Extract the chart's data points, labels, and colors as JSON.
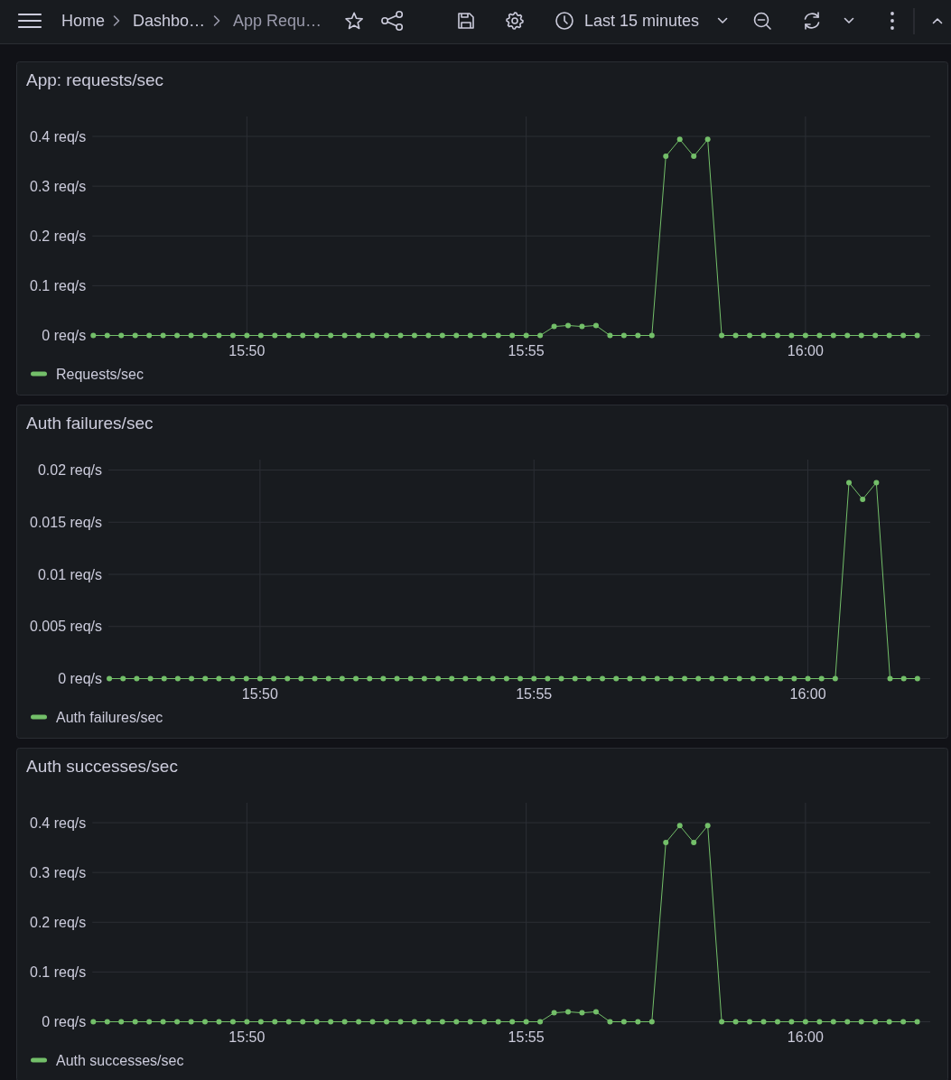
{
  "chart_data": [
    {
      "type": "other",
      "annotations": [
        "Home",
        "Dashbo…",
        "App Requ…",
        "Last 15 minutes"
      ]
    },
    {
      "type": "line",
      "title": "App: requests/sec",
      "x": [
        15.7875,
        15.79167,
        15.79583,
        15.8,
        15.80417,
        15.80833,
        15.8125,
        15.81667,
        15.82083,
        15.825,
        15.82917,
        15.83333,
        15.8375,
        15.84167,
        15.84583,
        15.85,
        15.85417,
        15.85833,
        15.8625,
        15.86667,
        15.87083,
        15.875,
        15.87917,
        15.88333,
        15.8875,
        15.89167,
        15.89583,
        15.9,
        15.90417,
        15.90833,
        15.9125,
        15.91667,
        15.92083,
        15.925,
        15.92917,
        15.93333,
        15.9375,
        15.94167,
        15.94583,
        15.95,
        15.95417,
        15.95833,
        15.9625,
        15.96667,
        15.97083,
        15.975,
        15.97917,
        15.98333,
        15.9875,
        15.99167,
        15.99583,
        16,
        16.00417,
        16.00833,
        16.0125,
        16.01667,
        16.02083,
        16.025,
        16.02917,
        16.03333
      ],
      "xlim": [
        15.78722,
        16.03722
      ],
      "xticks": [
        {
          "value": 15.83333,
          "label": "15:50"
        },
        {
          "value": 15.91667,
          "label": "15:55"
        },
        {
          "value": 16,
          "label": "16:00"
        }
      ],
      "ylim": [
        0,
        0.44
      ],
      "yticks": [
        {
          "value": 0,
          "label": "0 req/s"
        },
        {
          "value": 0.1,
          "label": "0.1 req/s"
        },
        {
          "value": 0.2,
          "label": "0.2 req/s"
        },
        {
          "value": 0.3,
          "label": "0.3 req/s"
        },
        {
          "value": 0.4,
          "label": "0.4 req/s"
        }
      ],
      "series": [
        {
          "name": "Requests/sec",
          "color": "#73bf69",
          "values": [
            0,
            0,
            0,
            0,
            0,
            0,
            0,
            0,
            0,
            0,
            0,
            0,
            0,
            0,
            0,
            0,
            0,
            0,
            0,
            0,
            0,
            0,
            0,
            0,
            0,
            0,
            0,
            0,
            0,
            0,
            0,
            0,
            0,
            0.018,
            0.02,
            0.018,
            0.02,
            0,
            0,
            0,
            0,
            0.36,
            0.394,
            0.36,
            0.394,
            0,
            0,
            0,
            0,
            0,
            0,
            0,
            0,
            0,
            0,
            0,
            0,
            0,
            0,
            0
          ]
        }
      ],
      "grid": true,
      "legend": "bottom left",
      "marker": "circle"
    },
    {
      "type": "line",
      "title": "Auth failures/sec",
      "x": [
        15.7875,
        15.79167,
        15.79583,
        15.8,
        15.80417,
        15.80833,
        15.8125,
        15.81667,
        15.82083,
        15.825,
        15.82917,
        15.83333,
        15.8375,
        15.84167,
        15.84583,
        15.85,
        15.85417,
        15.85833,
        15.8625,
        15.86667,
        15.87083,
        15.875,
        15.87917,
        15.88333,
        15.8875,
        15.89167,
        15.89583,
        15.9,
        15.90417,
        15.90833,
        15.9125,
        15.91667,
        15.92083,
        15.925,
        15.92917,
        15.93333,
        15.9375,
        15.94167,
        15.94583,
        15.95,
        15.95417,
        15.95833,
        15.9625,
        15.96667,
        15.97083,
        15.975,
        15.97917,
        15.98333,
        15.9875,
        15.99167,
        15.99583,
        16,
        16.00417,
        16.00833,
        16.0125,
        16.01667,
        16.02083,
        16.025,
        16.02917,
        16.03333
      ],
      "xlim": [
        15.78722,
        16.03722
      ],
      "xticks": [
        {
          "value": 15.83333,
          "label": "15:50"
        },
        {
          "value": 15.91667,
          "label": "15:55"
        },
        {
          "value": 16,
          "label": "16:00"
        }
      ],
      "ylim": [
        0,
        0.021
      ],
      "yticks": [
        {
          "value": 0,
          "label": "0 req/s"
        },
        {
          "value": 0.005,
          "label": "0.005 req/s"
        },
        {
          "value": 0.01,
          "label": "0.01 req/s"
        },
        {
          "value": 0.015,
          "label": "0.015 req/s"
        },
        {
          "value": 0.02,
          "label": "0.02 req/s"
        }
      ],
      "series": [
        {
          "name": "Auth failures/sec",
          "color": "#73bf69",
          "values": [
            0,
            0,
            0,
            0,
            0,
            0,
            0,
            0,
            0,
            0,
            0,
            0,
            0,
            0,
            0,
            0,
            0,
            0,
            0,
            0,
            0,
            0,
            0,
            0,
            0,
            0,
            0,
            0,
            0,
            0,
            0,
            0,
            0,
            0,
            0,
            0,
            0,
            0,
            0,
            0,
            0,
            0,
            0,
            0,
            0,
            0,
            0,
            0,
            0,
            0,
            0,
            0,
            0,
            0,
            0.0188,
            0.0172,
            0.0188,
            0,
            0,
            0
          ]
        }
      ],
      "grid": true,
      "legend": "bottom left",
      "marker": "circle"
    },
    {
      "type": "line",
      "title": "Auth successes/sec",
      "x": [
        15.7875,
        15.79167,
        15.79583,
        15.8,
        15.80417,
        15.80833,
        15.8125,
        15.81667,
        15.82083,
        15.825,
        15.82917,
        15.83333,
        15.8375,
        15.84167,
        15.84583,
        15.85,
        15.85417,
        15.85833,
        15.8625,
        15.86667,
        15.87083,
        15.875,
        15.87917,
        15.88333,
        15.8875,
        15.89167,
        15.89583,
        15.9,
        15.90417,
        15.90833,
        15.9125,
        15.91667,
        15.92083,
        15.925,
        15.92917,
        15.93333,
        15.9375,
        15.94167,
        15.94583,
        15.95,
        15.95417,
        15.95833,
        15.9625,
        15.96667,
        15.97083,
        15.975,
        15.97917,
        15.98333,
        15.9875,
        15.99167,
        15.99583,
        16,
        16.00417,
        16.00833,
        16.0125,
        16.01667,
        16.02083,
        16.025,
        16.02917,
        16.03333
      ],
      "xlim": [
        15.78722,
        16.03722
      ],
      "xticks": [
        {
          "value": 15.83333,
          "label": "15:50"
        },
        {
          "value": 15.91667,
          "label": "15:55"
        },
        {
          "value": 16,
          "label": "16:00"
        }
      ],
      "ylim": [
        0,
        0.44
      ],
      "yticks": [
        {
          "value": 0,
          "label": "0 req/s"
        },
        {
          "value": 0.1,
          "label": "0.1 req/s"
        },
        {
          "value": 0.2,
          "label": "0.2 req/s"
        },
        {
          "value": 0.3,
          "label": "0.3 req/s"
        },
        {
          "value": 0.4,
          "label": "0.4 req/s"
        }
      ],
      "series": [
        {
          "name": "Auth successes/sec",
          "color": "#73bf69",
          "values": [
            0,
            0,
            0,
            0,
            0,
            0,
            0,
            0,
            0,
            0,
            0,
            0,
            0,
            0,
            0,
            0,
            0,
            0,
            0,
            0,
            0,
            0,
            0,
            0,
            0,
            0,
            0,
            0,
            0,
            0,
            0,
            0,
            0,
            0.018,
            0.02,
            0.018,
            0.02,
            0,
            0,
            0,
            0,
            0.36,
            0.394,
            0.36,
            0.394,
            0,
            0,
            0,
            0,
            0,
            0,
            0,
            0,
            0,
            0,
            0,
            0,
            0,
            0,
            0
          ]
        }
      ],
      "grid": true,
      "legend": "bottom left",
      "marker": "circle"
    }
  ]
}
